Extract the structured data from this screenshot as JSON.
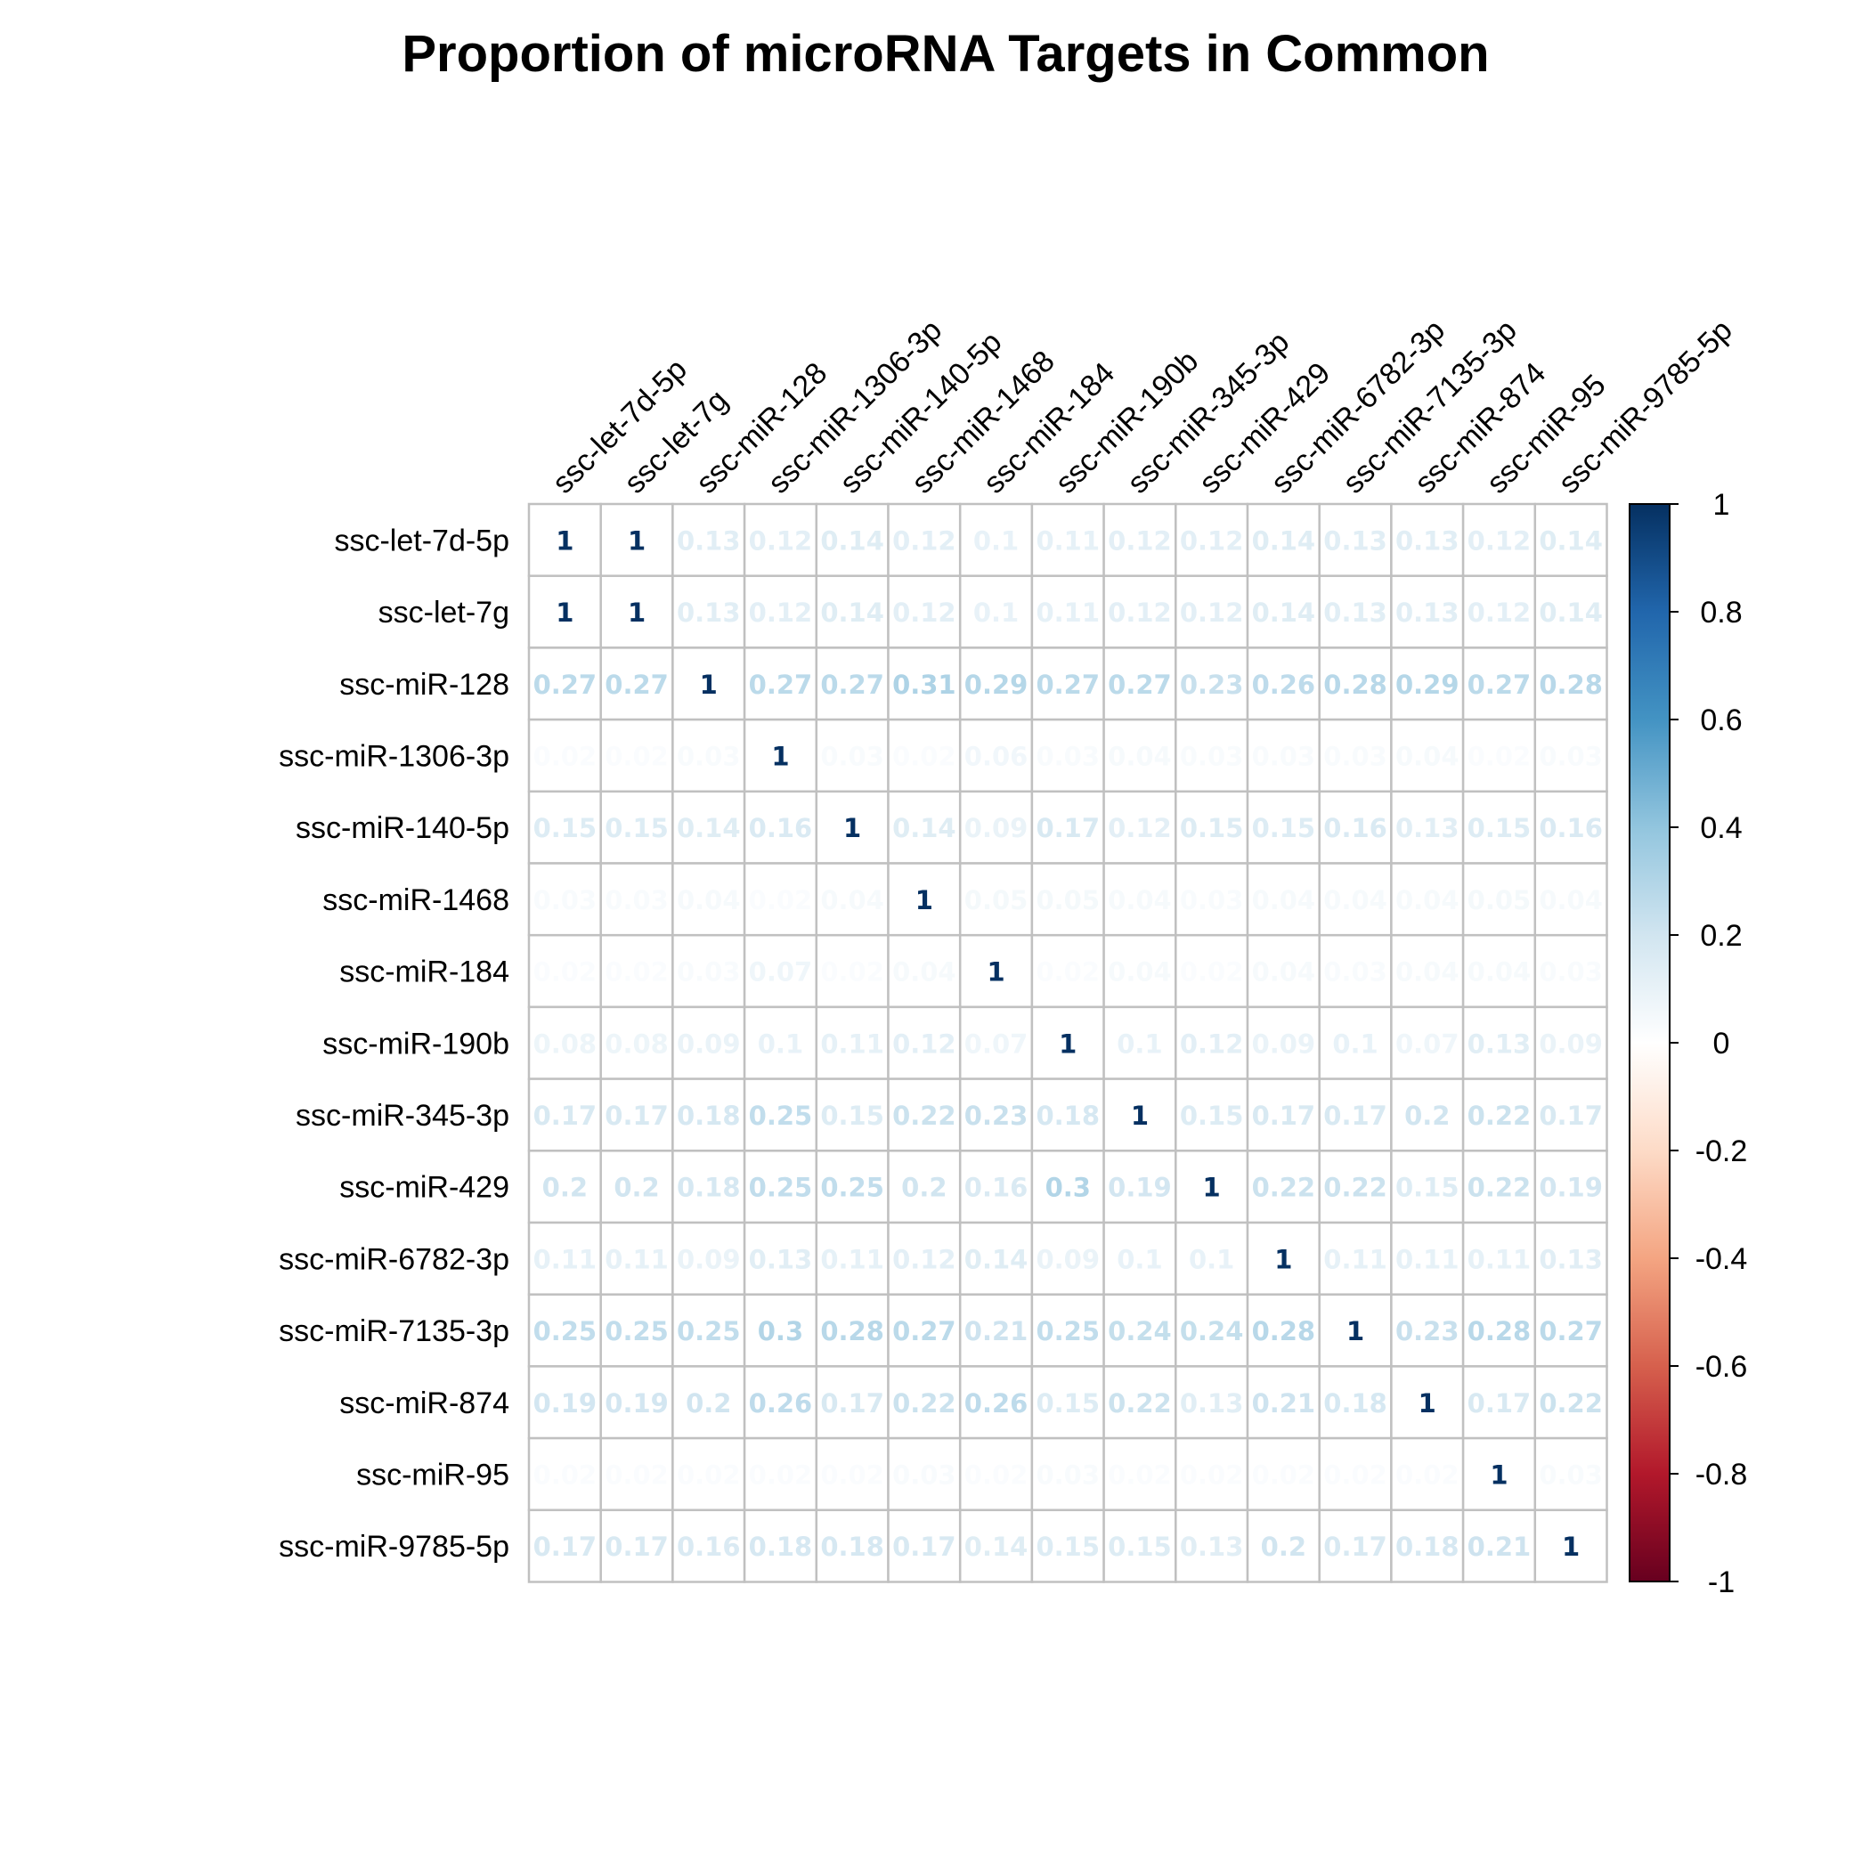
{
  "chart_data": {
    "type": "heatmap",
    "title": "Proportion of microRNA Targets in Common",
    "labels": [
      "ssc-let-7d-5p",
      "ssc-let-7g",
      "ssc-miR-128",
      "ssc-miR-1306-3p",
      "ssc-miR-140-5p",
      "ssc-miR-1468",
      "ssc-miR-184",
      "ssc-miR-190b",
      "ssc-miR-345-3p",
      "ssc-miR-429",
      "ssc-miR-6782-3p",
      "ssc-miR-7135-3p",
      "ssc-miR-874",
      "ssc-miR-95",
      "ssc-miR-9785-5p"
    ],
    "matrix": [
      [
        1,
        1,
        0.13,
        0.12,
        0.14,
        0.12,
        0.1,
        0.11,
        0.12,
        0.12,
        0.14,
        0.13,
        0.13,
        0.12,
        0.14
      ],
      [
        1,
        1,
        0.13,
        0.12,
        0.14,
        0.12,
        0.1,
        0.11,
        0.12,
        0.12,
        0.14,
        0.13,
        0.13,
        0.12,
        0.14
      ],
      [
        0.27,
        0.27,
        1,
        0.27,
        0.27,
        0.31,
        0.29,
        0.27,
        0.27,
        0.23,
        0.26,
        0.28,
        0.29,
        0.27,
        0.28
      ],
      [
        0.02,
        0.02,
        0.03,
        1,
        0.03,
        0.02,
        0.06,
        0.03,
        0.04,
        0.03,
        0.03,
        0.03,
        0.04,
        0.02,
        0.03
      ],
      [
        0.15,
        0.15,
        0.14,
        0.16,
        1,
        0.14,
        0.09,
        0.17,
        0.12,
        0.15,
        0.15,
        0.16,
        0.13,
        0.15,
        0.16
      ],
      [
        0.03,
        0.03,
        0.04,
        0.02,
        0.04,
        1,
        0.05,
        0.05,
        0.04,
        0.03,
        0.04,
        0.04,
        0.04,
        0.05,
        0.04
      ],
      [
        0.02,
        0.02,
        0.03,
        0.07,
        0.02,
        0.04,
        1,
        0.02,
        0.04,
        0.02,
        0.04,
        0.03,
        0.04,
        0.04,
        0.03
      ],
      [
        0.08,
        0.08,
        0.09,
        0.1,
        0.11,
        0.12,
        0.07,
        1,
        0.1,
        0.12,
        0.09,
        0.1,
        0.07,
        0.13,
        0.09
      ],
      [
        0.17,
        0.17,
        0.18,
        0.25,
        0.15,
        0.22,
        0.23,
        0.18,
        1,
        0.15,
        0.17,
        0.17,
        0.2,
        0.22,
        0.17
      ],
      [
        0.2,
        0.2,
        0.18,
        0.25,
        0.25,
        0.2,
        0.16,
        0.3,
        0.19,
        1,
        0.22,
        0.22,
        0.15,
        0.22,
        0.19
      ],
      [
        0.11,
        0.11,
        0.09,
        0.13,
        0.11,
        0.12,
        0.14,
        0.09,
        0.1,
        0.1,
        1,
        0.11,
        0.11,
        0.11,
        0.13
      ],
      [
        0.25,
        0.25,
        0.25,
        0.3,
        0.28,
        0.27,
        0.21,
        0.25,
        0.24,
        0.24,
        0.28,
        1,
        0.23,
        0.28,
        0.27
      ],
      [
        0.19,
        0.19,
        0.2,
        0.26,
        0.17,
        0.22,
        0.26,
        0.15,
        0.22,
        0.13,
        0.21,
        0.18,
        1,
        0.17,
        0.22
      ],
      [
        0.02,
        0.02,
        0.02,
        0.02,
        0.02,
        0.03,
        0.02,
        0.03,
        0.02,
        0.02,
        0.02,
        0.02,
        0.02,
        1,
        0.03
      ],
      [
        0.17,
        0.17,
        0.16,
        0.18,
        0.18,
        0.17,
        0.14,
        0.15,
        0.15,
        0.13,
        0.2,
        0.17,
        0.18,
        0.21,
        1
      ]
    ],
    "value_range": [
      -1,
      1
    ],
    "colorbar_ticks": [
      "1",
      "0.8",
      "0.6",
      "0.4",
      "0.2",
      "0",
      "-0.2",
      "-0.4",
      "-0.6",
      "-0.8",
      "-1"
    ],
    "colorbar_placement": "right",
    "palette": [
      "#67001F",
      "#B2182B",
      "#D6604D",
      "#F4A582",
      "#FDDBC7",
      "#FFFFFF",
      "#D1E5F0",
      "#92C5DE",
      "#4393C3",
      "#2166AC",
      "#053061"
    ],
    "grid_color": "#C0C0C0"
  }
}
